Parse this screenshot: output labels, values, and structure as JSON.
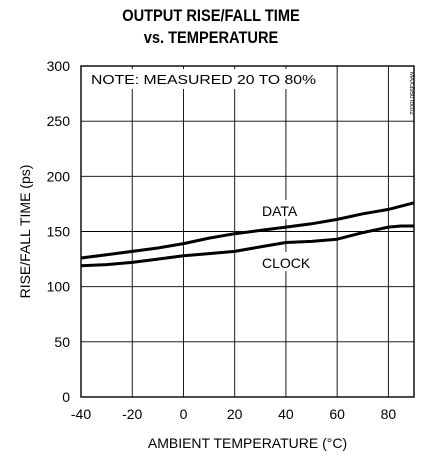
{
  "chart_data": {
    "type": "line",
    "title_line1": "OUTPUT RISE/FALL TIME",
    "title_line2": "vs. TEMPERATURE",
    "xlabel": "AMBIENT TEMPERATURE (°C)",
    "ylabel": "RISE/FALL TIME (ps)",
    "xlim": [
      -40,
      90
    ],
    "ylim": [
      0,
      300
    ],
    "x_ticks": [
      -40,
      -20,
      0,
      20,
      40,
      60,
      80
    ],
    "y_ticks": [
      0,
      50,
      100,
      150,
      200,
      250,
      300
    ],
    "grid": true,
    "note": "NOTE: MEASURED 20 TO 80%",
    "watermark": "MAX3950 toc02",
    "series": [
      {
        "name": "DATA",
        "x": [
          -40,
          -30,
          -20,
          -10,
          0,
          10,
          20,
          30,
          40,
          50,
          60,
          70,
          80,
          90
        ],
        "y": [
          126,
          129,
          132,
          135,
          139,
          144,
          148,
          151,
          154,
          157,
          161,
          166,
          170,
          176
        ]
      },
      {
        "name": "CLOCK",
        "x": [
          -40,
          -30,
          -20,
          -10,
          0,
          10,
          20,
          30,
          40,
          50,
          60,
          70,
          80,
          85,
          90
        ],
        "y": [
          119,
          120,
          122,
          125,
          128,
          130,
          132,
          136,
          140,
          141,
          143,
          149,
          154,
          155,
          155
        ]
      }
    ]
  }
}
